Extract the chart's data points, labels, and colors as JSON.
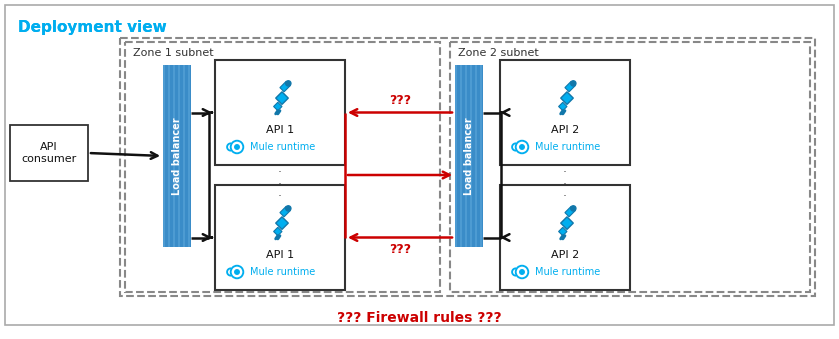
{
  "title": "Deployment view",
  "title_color": "#00AEEF",
  "bg_color": "#FFFFFF",
  "zone1_label": "Zone 1 subnet",
  "zone2_label": "Zone 2 subnet",
  "lb_color": "#3A8CC8",
  "lb_text": "Load balancer",
  "api1_label": "API 1",
  "api2_label": "API 2",
  "mule_text": "Mule runtime",
  "mule_color": "#00AEEF",
  "consumer_label": "API\nconsumer",
  "firewall_text": "??? Firewall rules ???",
  "firewall_color": "#CC0000",
  "qqq_color": "#CC0000",
  "arrow_black": "#111111",
  "arrow_red": "#CC0000",
  "box_border": "#333333",
  "dashed_border": "#888888",
  "outer_border": "#AAAAAA",
  "icon_color": "#00AEEF",
  "icon_dark": "#1177AA"
}
